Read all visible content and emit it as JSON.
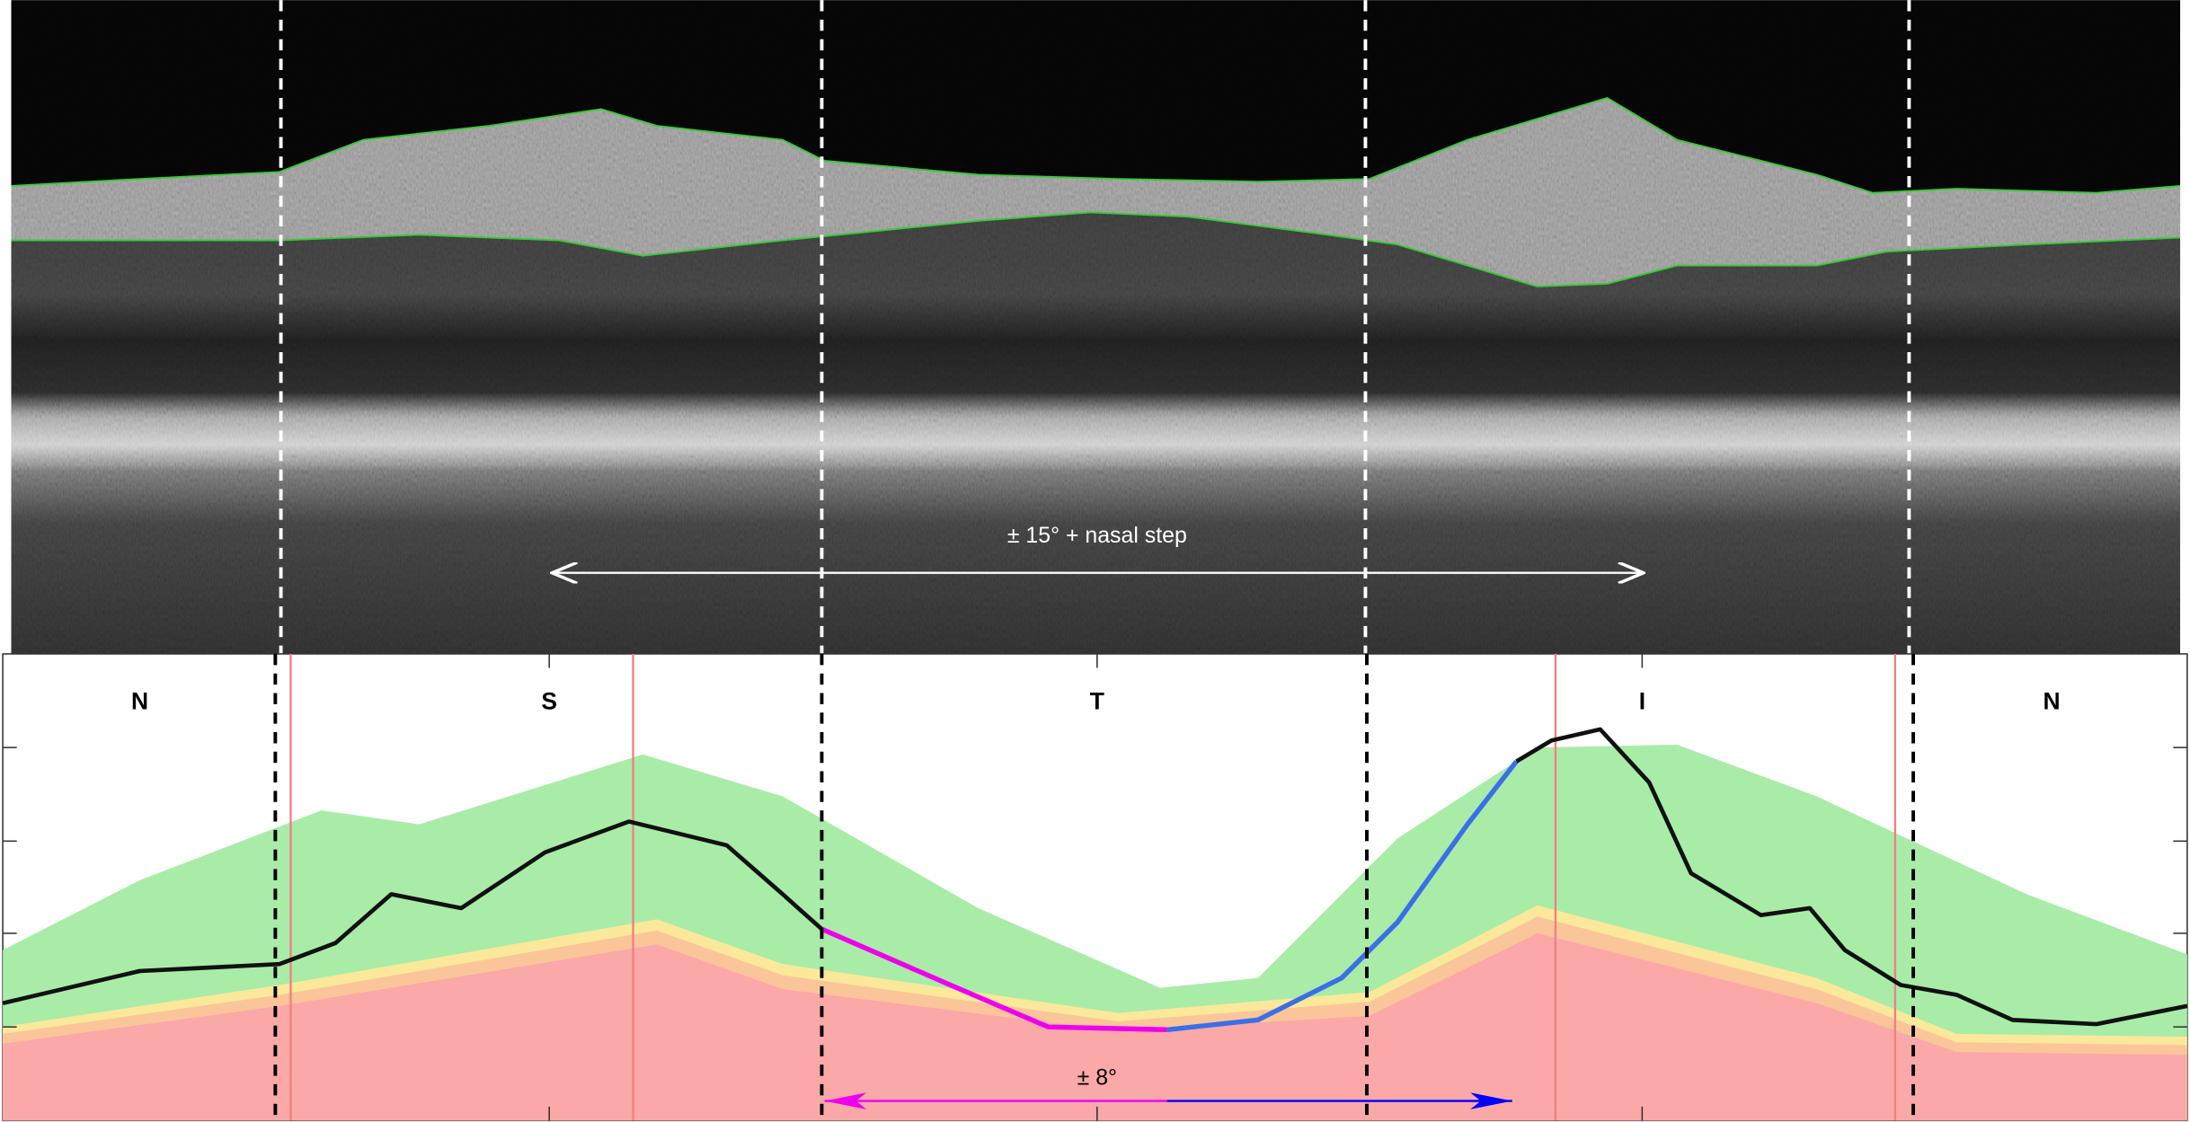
{
  "sectors": [
    "N",
    "S",
    "T",
    "I",
    "N"
  ],
  "annotations": {
    "oct_range": "± 15° + nasal step",
    "profile_range": "± 8°"
  }
}
